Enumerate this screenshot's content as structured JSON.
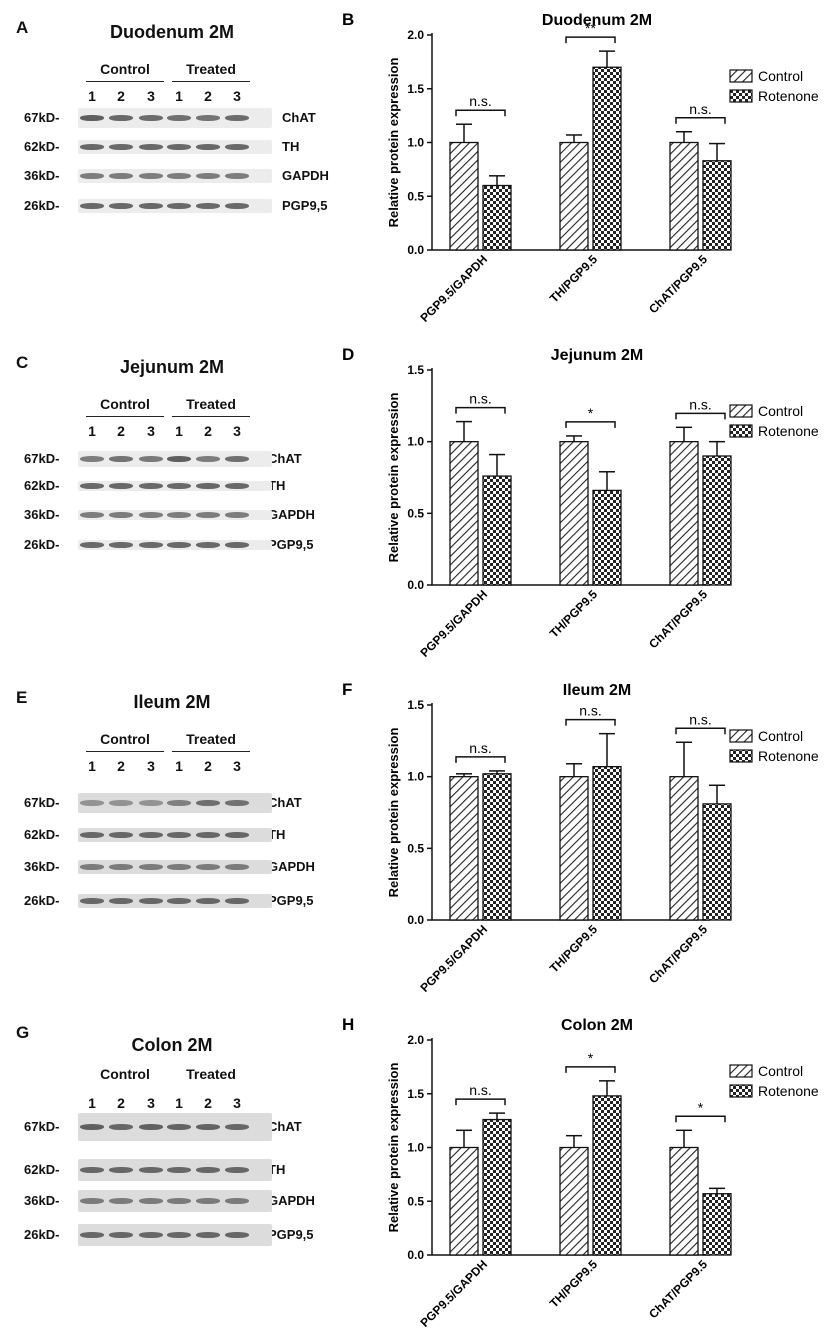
{
  "panels": [
    {
      "blot": {
        "letter": "A",
        "title": "Duodenum 2M",
        "groups": [
          "Control",
          "Treated"
        ],
        "lanes": [
          "1",
          "2",
          "3",
          "1",
          "2",
          "3"
        ],
        "markers": [
          {
            "kd": "67kD-",
            "protein": "ChAT"
          },
          {
            "kd": "62kD-",
            "protein": "TH"
          },
          {
            "kd": "36kD-",
            "protein": "GAPDH"
          },
          {
            "kd": "26kD-",
            "protein": "PGP9,5"
          }
        ]
      },
      "chart": {
        "letter": "B",
        "title": "Duodenum 2M",
        "ylabel": "Relative protein expression",
        "ylim": [
          0,
          2.0
        ],
        "yticks": [
          "0.0",
          "0.5",
          "1.0",
          "1.5",
          "2.0"
        ],
        "legend": [
          "Control",
          "Rotenone"
        ]
      }
    },
    {
      "blot": {
        "letter": "C",
        "title": "Jejunum 2M",
        "groups": [
          "Control",
          "Treated"
        ],
        "lanes": [
          "1",
          "2",
          "3",
          "1",
          "2",
          "3"
        ],
        "markers": [
          {
            "kd": "67kD-",
            "protein": "ChAT"
          },
          {
            "kd": "62kD-",
            "protein": "TH"
          },
          {
            "kd": "36kD-",
            "protein": "GAPDH"
          },
          {
            "kd": "26kD-",
            "protein": "PGP9,5"
          }
        ]
      },
      "chart": {
        "letter": "D",
        "title": "Jejunum 2M",
        "ylabel": "Relative protein expression",
        "ylim": [
          0,
          1.5
        ],
        "yticks": [
          "0.0",
          "0.5",
          "1.0",
          "1.5"
        ],
        "legend": [
          "Control",
          "Rotenone"
        ]
      }
    },
    {
      "blot": {
        "letter": "E",
        "title": "Ileum 2M",
        "groups": [
          "Control",
          "Treated"
        ],
        "lanes": [
          "1",
          "2",
          "3",
          "1",
          "2",
          "3"
        ],
        "markers": [
          {
            "kd": "67kD-",
            "protein": "ChAT"
          },
          {
            "kd": "62kD-",
            "protein": "TH"
          },
          {
            "kd": "36kD-",
            "protein": "GAPDH"
          },
          {
            "kd": "26kD-",
            "protein": "PGP9,5"
          }
        ]
      },
      "chart": {
        "letter": "F",
        "title": "Ileum 2M",
        "ylabel": "Relative protein expression",
        "ylim": [
          0,
          1.5
        ],
        "yticks": [
          "0.0",
          "0.5",
          "1.0",
          "1.5"
        ],
        "legend": [
          "Control",
          "Rotenone"
        ]
      }
    },
    {
      "blot": {
        "letter": "G",
        "title": "Colon 2M",
        "groups": [
          "Control",
          "Treated"
        ],
        "lanes": [
          "1",
          "2",
          "3",
          "1",
          "2",
          "3"
        ],
        "markers": [
          {
            "kd": "67kD-",
            "protein": "ChAT"
          },
          {
            "kd": "62kD-",
            "protein": "TH"
          },
          {
            "kd": "36kD-",
            "protein": "GAPDH"
          },
          {
            "kd": "26kD-",
            "protein": "PGP9,5"
          }
        ]
      },
      "chart": {
        "letter": "H",
        "title": "Colon 2M",
        "ylabel": "Relative protein expression",
        "ylim": [
          0,
          2.0
        ],
        "yticks": [
          "0.0",
          "0.5",
          "1.0",
          "1.5",
          "2.0"
        ],
        "legend": [
          "Control",
          "Rotenone"
        ]
      }
    }
  ],
  "chart_data": [
    {
      "type": "bar",
      "title": "Duodenum 2M",
      "ylabel": "Relative protein expression",
      "ylim": [
        0,
        2.0
      ],
      "categories": [
        "PGP9.5/GAPDH",
        "TH/PGP9.5",
        "ChAT/PGP9.5"
      ],
      "series": [
        {
          "name": "Control",
          "values": [
            1.0,
            1.0,
            1.0
          ],
          "errors": [
            0.17,
            0.07,
            0.1
          ]
        },
        {
          "name": "Rotenone",
          "values": [
            0.6,
            1.7,
            0.83
          ],
          "errors": [
            0.09,
            0.15,
            0.16
          ]
        }
      ],
      "significance": [
        "n.s.",
        "**",
        "n.s."
      ],
      "legend_position": "top-right"
    },
    {
      "type": "bar",
      "title": "Jejunum 2M",
      "ylabel": "Relative protein expression",
      "ylim": [
        0,
        1.5
      ],
      "categories": [
        "PGP9.5/GAPDH",
        "TH/PGP9.5",
        "ChAT/PGP9.5"
      ],
      "series": [
        {
          "name": "Control",
          "values": [
            1.0,
            1.0,
            1.0
          ],
          "errors": [
            0.14,
            0.04,
            0.1
          ]
        },
        {
          "name": "Rotenone",
          "values": [
            0.76,
            0.66,
            0.9
          ],
          "errors": [
            0.15,
            0.13,
            0.1
          ]
        }
      ],
      "significance": [
        "n.s.",
        "*",
        "n.s."
      ],
      "legend_position": "top-right"
    },
    {
      "type": "bar",
      "title": "Ileum 2M",
      "ylabel": "Relative protein expression",
      "ylim": [
        0,
        1.5
      ],
      "categories": [
        "PGP9.5/GAPDH",
        "TH/PGP9.5",
        "ChAT/PGP9.5"
      ],
      "series": [
        {
          "name": "Control",
          "values": [
            1.0,
            1.0,
            1.0
          ],
          "errors": [
            0.02,
            0.09,
            0.24
          ]
        },
        {
          "name": "Rotenone",
          "values": [
            1.02,
            1.07,
            0.81
          ],
          "errors": [
            0.02,
            0.23,
            0.13
          ]
        }
      ],
      "significance": [
        "n.s.",
        "n.s.",
        "n.s."
      ],
      "legend_position": "top-right"
    },
    {
      "type": "bar",
      "title": "Colon 2M",
      "ylabel": "Relative protein expression",
      "ylim": [
        0,
        2.0
      ],
      "categories": [
        "PGP9.5/GAPDH",
        "TH/PGP9.5",
        "ChAT/PGP9.5"
      ],
      "series": [
        {
          "name": "Control",
          "values": [
            1.0,
            1.0,
            1.0
          ],
          "errors": [
            0.16,
            0.11,
            0.16
          ]
        },
        {
          "name": "Rotenone",
          "values": [
            1.26,
            1.48,
            0.57
          ],
          "errors": [
            0.06,
            0.14,
            0.05
          ]
        }
      ],
      "significance": [
        "n.s.",
        "*",
        "*"
      ],
      "legend_position": "top-right"
    }
  ]
}
